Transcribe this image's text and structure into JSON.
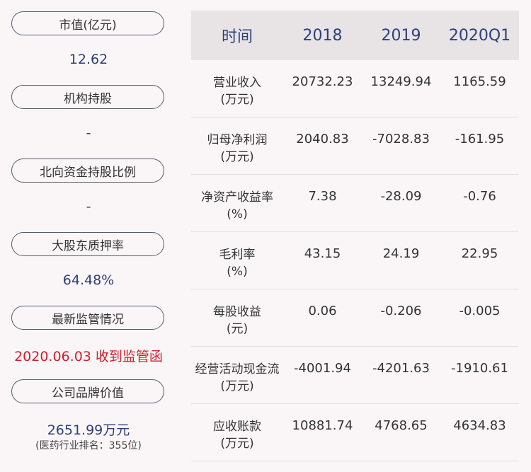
{
  "left_panel": [
    {
      "label": "市值(亿元)",
      "value": "12.62"
    },
    {
      "label": "机构持股",
      "value": "-"
    },
    {
      "label": "北向资金持股比例",
      "value": "-"
    },
    {
      "label": "大股东质押率",
      "value": "64.48%"
    },
    {
      "label": "最新监管情况",
      "value": "2020.06.03 收到监管函"
    },
    {
      "label": "公司品牌价值",
      "value": "2651.99万元",
      "note": "(医药行业排名：355位)"
    }
  ],
  "table": {
    "headers": [
      "时间",
      "2018",
      "2019",
      "2020Q1"
    ],
    "rows": [
      {
        "name": "营业收入",
        "unit": "(万元)",
        "values": [
          "20732.23",
          "13249.94",
          "1165.59"
        ]
      },
      {
        "name": "归母净利润",
        "unit": "(万元)",
        "values": [
          "2040.83",
          "-7028.83",
          "-161.95"
        ]
      },
      {
        "name": "净资产收益率",
        "unit": "(%)",
        "values": [
          "7.38",
          "-28.09",
          "-0.76"
        ]
      },
      {
        "name": "毛利率",
        "unit": "(%)",
        "values": [
          "43.15",
          "24.19",
          "22.95"
        ]
      },
      {
        "name": "每股收益",
        "unit": "(元)",
        "values": [
          "0.06",
          "-0.206",
          "-0.005"
        ]
      },
      {
        "name": "经营活动现金流",
        "unit": "(万元)",
        "values": [
          "-4001.94",
          "-4201.63",
          "-1910.61"
        ]
      },
      {
        "name": "应收账款",
        "unit": "(万元)",
        "values": [
          "10881.74",
          "4768.65",
          "4634.83"
        ]
      }
    ]
  }
}
